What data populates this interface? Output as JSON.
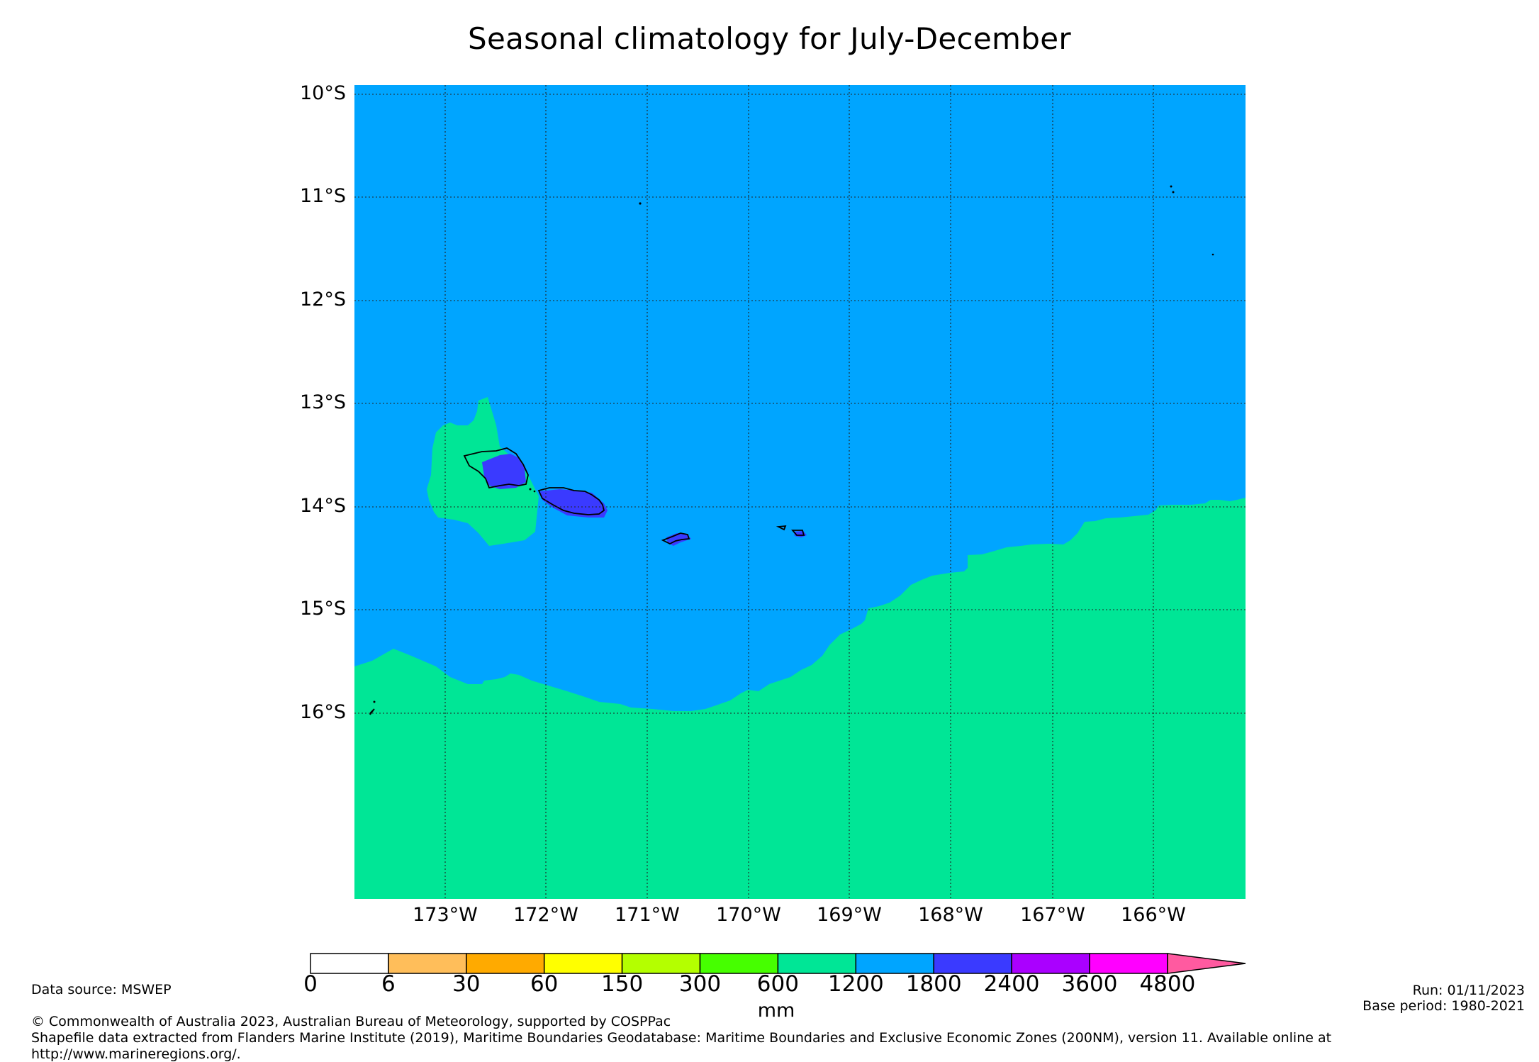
{
  "title": "Seasonal climatology for July-December",
  "latitude_labels": [
    "10°S",
    "11°S",
    "12°S",
    "13°S",
    "14°S",
    "15°S",
    "16°S"
  ],
  "longitude_labels": [
    "173°W",
    "172°W",
    "171°W",
    "170°W",
    "169°W",
    "168°W",
    "167°W",
    "166°W"
  ],
  "map": {
    "ocean_color": "#00a5ff",
    "southern_band_color": "#00e696",
    "island_rain_color": "#3a3aff"
  },
  "colorbar": {
    "unit": "mm",
    "ticks": [
      "0",
      "6",
      "30",
      "60",
      "150",
      "300",
      "600",
      "1200",
      "1800",
      "2400",
      "3600",
      "4800"
    ],
    "colors": [
      "#ffffff",
      "#ffbe5a",
      "#ffaa00",
      "#ffff00",
      "#b4ff00",
      "#46ff00",
      "#00e696",
      "#00a5ff",
      "#3a3aff",
      "#aa00ff",
      "#ff00ff"
    ],
    "extend_color": "#ff5aa0"
  },
  "footer": {
    "data_source": "Data source: MSWEP",
    "run": "Run: 01/11/2023",
    "base_period": "Base period: 1980-2021",
    "copyright": "© Commonwealth of Australia 2023, Australian Bureau of Meteorology, supported by COSPPac",
    "shapefile_line1": "Shapefile data extracted from Flanders Marine Institute (2019), Maritime Boundaries Geodatabase: Maritime Boundaries and Exclusive Economic Zones (200NM), version 11. Available online at",
    "shapefile_line2": "http://www.marineregions.org/."
  }
}
